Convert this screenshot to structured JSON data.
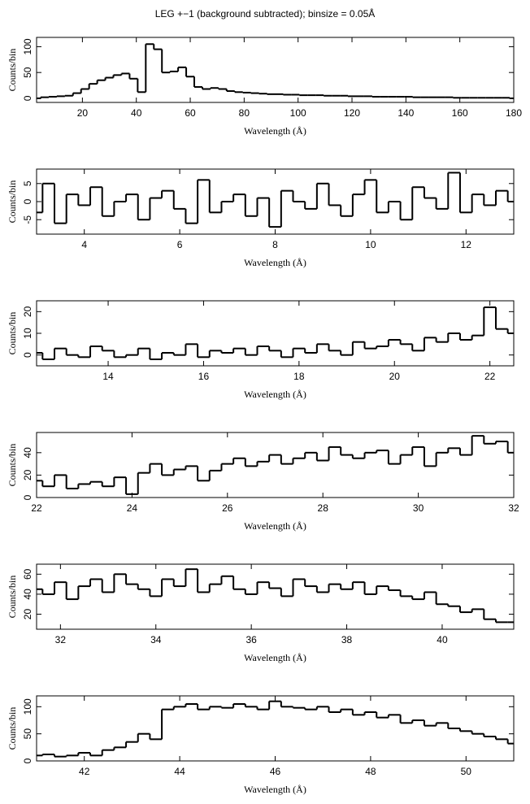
{
  "title": "LEG +−1 (background subtracted); binsize = 0.05Å",
  "chart_data": [
    {
      "type": "line",
      "xlabel": "Wavelength (Å)",
      "ylabel": "Counts/bin",
      "color": "#000000",
      "xlim": [
        3,
        180
      ],
      "xticks": [
        20,
        40,
        60,
        80,
        100,
        120,
        140,
        160,
        180
      ],
      "ylim": [
        -8,
        118
      ],
      "yticks": [
        0,
        50,
        100
      ],
      "x": [
        3,
        6,
        9,
        12,
        15,
        18,
        21,
        24,
        27,
        30,
        33,
        36,
        39,
        42,
        45,
        48,
        51,
        54,
        57,
        60,
        63,
        66,
        69,
        72,
        75,
        78,
        81,
        84,
        87,
        90,
        93,
        96,
        99,
        102,
        105,
        108,
        111,
        114,
        117,
        120,
        123,
        126,
        129,
        132,
        135,
        138,
        141,
        144,
        147,
        150,
        153,
        156,
        159,
        162,
        165,
        168,
        171,
        174,
        177,
        180
      ],
      "values": [
        0,
        2,
        3,
        4,
        5,
        10,
        18,
        28,
        35,
        40,
        45,
        48,
        38,
        12,
        105,
        95,
        50,
        52,
        60,
        42,
        22,
        18,
        20,
        18,
        14,
        12,
        11,
        10,
        9,
        8,
        8,
        7,
        7,
        6,
        6,
        6,
        5,
        5,
        5,
        4,
        4,
        4,
        3,
        3,
        3,
        3,
        3,
        2,
        2,
        2,
        2,
        2,
        1,
        1,
        1,
        1,
        1,
        1,
        1,
        0
      ]
    },
    {
      "type": "line",
      "xlabel": "Wavelength (Å)",
      "ylabel": "Counts/bin",
      "color": "#000000",
      "xlim": [
        3,
        13
      ],
      "xticks": [
        4,
        6,
        8,
        10,
        12
      ],
      "ylim": [
        -9,
        9
      ],
      "yticks": [
        -5,
        0,
        5
      ],
      "x": [
        3,
        3.25,
        3.5,
        3.75,
        4,
        4.25,
        4.5,
        4.75,
        5,
        5.25,
        5.5,
        5.75,
        6,
        6.25,
        6.5,
        6.75,
        7,
        7.25,
        7.5,
        7.75,
        8,
        8.25,
        8.5,
        8.75,
        9,
        9.25,
        9.5,
        9.75,
        10,
        10.25,
        10.5,
        10.75,
        11,
        11.25,
        11.5,
        11.75,
        12,
        12.25,
        12.5,
        12.75,
        13
      ],
      "values": [
        -3,
        5,
        -6,
        2,
        -1,
        4,
        -4,
        0,
        2,
        -5,
        1,
        3,
        -2,
        -6,
        6,
        -3,
        0,
        2,
        -4,
        1,
        -7,
        3,
        0,
        -2,
        5,
        -1,
        -4,
        2,
        6,
        -3,
        0,
        -5,
        4,
        1,
        -2,
        8,
        -3,
        2,
        -1,
        3,
        0
      ]
    },
    {
      "type": "line",
      "xlabel": "Wavelength (Å)",
      "ylabel": "Counts/bin",
      "color": "#000000",
      "xlim": [
        12.5,
        22.5
      ],
      "xticks": [
        14,
        16,
        18,
        20,
        22
      ],
      "ylim": [
        -5,
        25
      ],
      "yticks": [
        0,
        10,
        20
      ],
      "x": [
        12.5,
        12.75,
        13,
        13.25,
        13.5,
        13.75,
        14,
        14.25,
        14.5,
        14.75,
        15,
        15.25,
        15.5,
        15.75,
        16,
        16.25,
        16.5,
        16.75,
        17,
        17.25,
        17.5,
        17.75,
        18,
        18.25,
        18.5,
        18.75,
        19,
        19.25,
        19.5,
        19.75,
        20,
        20.25,
        20.5,
        20.75,
        21,
        21.25,
        21.5,
        21.75,
        22,
        22.25,
        22.5
      ],
      "values": [
        1,
        -2,
        3,
        0,
        -1,
        4,
        2,
        -1,
        0,
        3,
        -2,
        1,
        0,
        5,
        -1,
        2,
        1,
        3,
        0,
        4,
        2,
        -1,
        3,
        1,
        5,
        2,
        0,
        6,
        3,
        4,
        7,
        5,
        2,
        8,
        6,
        10,
        7,
        9,
        22,
        12,
        10
      ]
    },
    {
      "type": "line",
      "xlabel": "Wavelength (Å)",
      "ylabel": "Counts/bin",
      "color": "#000000",
      "xlim": [
        22,
        32
      ],
      "xticks": [
        22,
        24,
        26,
        28,
        30,
        32
      ],
      "ylim": [
        0,
        58
      ],
      "yticks": [
        0,
        20,
        40
      ],
      "x": [
        22,
        22.25,
        22.5,
        22.75,
        23,
        23.25,
        23.5,
        23.75,
        24,
        24.25,
        24.5,
        24.75,
        25,
        25.25,
        25.5,
        25.75,
        26,
        26.25,
        26.5,
        26.75,
        27,
        27.25,
        27.5,
        27.75,
        28,
        28.25,
        28.5,
        28.75,
        29,
        29.25,
        29.5,
        29.75,
        30,
        30.25,
        30.5,
        30.75,
        31,
        31.25,
        31.5,
        31.75,
        32
      ],
      "values": [
        15,
        10,
        20,
        8,
        12,
        14,
        10,
        18,
        3,
        22,
        30,
        20,
        25,
        28,
        15,
        24,
        30,
        35,
        28,
        32,
        38,
        30,
        35,
        40,
        33,
        45,
        38,
        35,
        40,
        42,
        30,
        38,
        45,
        28,
        40,
        44,
        38,
        55,
        48,
        50,
        40
      ]
    },
    {
      "type": "line",
      "xlabel": "Wavelength (Å)",
      "ylabel": "Counts/bin",
      "color": "#000000",
      "xlim": [
        31.5,
        41.5
      ],
      "xticks": [
        32,
        34,
        36,
        38,
        40
      ],
      "ylim": [
        5,
        70
      ],
      "yticks": [
        20,
        40,
        60
      ],
      "x": [
        31.5,
        31.75,
        32,
        32.25,
        32.5,
        32.75,
        33,
        33.25,
        33.5,
        33.75,
        34,
        34.25,
        34.5,
        34.75,
        35,
        35.25,
        35.5,
        35.75,
        36,
        36.25,
        36.5,
        36.75,
        37,
        37.25,
        37.5,
        37.75,
        38,
        38.25,
        38.5,
        38.75,
        39,
        39.25,
        39.5,
        39.75,
        40,
        40.25,
        40.5,
        40.75,
        41,
        41.25,
        41.5
      ],
      "values": [
        45,
        40,
        52,
        35,
        48,
        55,
        42,
        60,
        50,
        45,
        38,
        55,
        48,
        65,
        42,
        50,
        58,
        45,
        40,
        52,
        46,
        38,
        55,
        48,
        42,
        50,
        45,
        52,
        40,
        48,
        44,
        38,
        35,
        42,
        30,
        28,
        22,
        25,
        15,
        12,
        12
      ]
    },
    {
      "type": "line",
      "xlabel": "Wavelength (Å)",
      "ylabel": "Counts/bin",
      "color": "#000000",
      "xlim": [
        41,
        51
      ],
      "xticks": [
        42,
        44,
        46,
        48,
        50
      ],
      "ylim": [
        0,
        120
      ],
      "yticks": [
        0,
        50,
        100
      ],
      "x": [
        41,
        41.25,
        41.5,
        41.75,
        42,
        42.25,
        42.5,
        42.75,
        43,
        43.25,
        43.5,
        43.75,
        44,
        44.25,
        44.5,
        44.75,
        45,
        45.25,
        45.5,
        45.75,
        46,
        46.25,
        46.5,
        46.75,
        47,
        47.25,
        47.5,
        47.75,
        48,
        48.25,
        48.5,
        48.75,
        49,
        49.25,
        49.5,
        49.75,
        50,
        50.25,
        50.5,
        50.75,
        51
      ],
      "values": [
        10,
        12,
        8,
        10,
        15,
        10,
        20,
        25,
        35,
        50,
        40,
        95,
        100,
        105,
        95,
        100,
        98,
        105,
        100,
        95,
        110,
        100,
        98,
        95,
        100,
        90,
        95,
        85,
        90,
        80,
        85,
        70,
        75,
        65,
        70,
        60,
        55,
        50,
        45,
        40,
        32
      ]
    }
  ]
}
